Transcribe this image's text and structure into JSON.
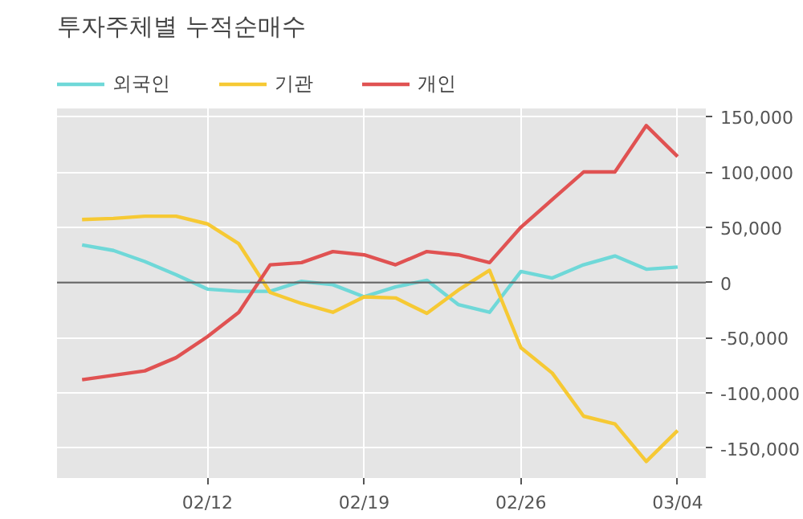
{
  "chart_data": {
    "type": "line",
    "title": "투자주체별 누적순매수",
    "categories": [
      null,
      null,
      null,
      null,
      "02/12",
      null,
      null,
      null,
      null,
      "02/19",
      null,
      null,
      null,
      null,
      "02/26",
      null,
      null,
      null,
      null,
      "03/04"
    ],
    "series": [
      {
        "name": "외국인",
        "color": "#6fd8d8",
        "values": [
          34000,
          29000,
          19000,
          7000,
          -6000,
          -8000,
          -8000,
          1000,
          -2000,
          -13000,
          -4000,
          2000,
          -20000,
          -27000,
          10000,
          4000,
          16000,
          24000,
          12000,
          14000
        ]
      },
      {
        "name": "기관",
        "color": "#f6c934",
        "values": [
          57000,
          58000,
          60000,
          60000,
          53000,
          35000,
          -9000,
          -19000,
          -27000,
          -13000,
          -14000,
          -28000,
          -7000,
          11000,
          -59000,
          -82000,
          -121000,
          -128000,
          -162000,
          -134000
        ]
      },
      {
        "name": "개인",
        "color": "#e05252",
        "values": [
          -88000,
          -84000,
          -80000,
          -68000,
          -49000,
          -27000,
          16000,
          18000,
          28000,
          25000,
          16000,
          28000,
          25000,
          18000,
          50000,
          75000,
          100000,
          100000,
          142000,
          114000
        ]
      }
    ],
    "ylim": [
      -177000,
      157500
    ],
    "yticks": [
      {
        "value": -150000,
        "label": "-150,000"
      },
      {
        "value": -100000,
        "label": "-100,000"
      },
      {
        "value": -50000,
        "label": "-50,000"
      },
      0,
      {
        "value": 50000,
        "label": "50,000"
      },
      {
        "value": 100000,
        "label": "100,000"
      },
      {
        "value": 150000,
        "label": "150,000"
      }
    ],
    "ref_lines": [
      {
        "axis": "y",
        "value": 0,
        "color": "#666666"
      }
    ],
    "grid": true,
    "legend": "top",
    "marker": "none",
    "line_style": "solid"
  }
}
